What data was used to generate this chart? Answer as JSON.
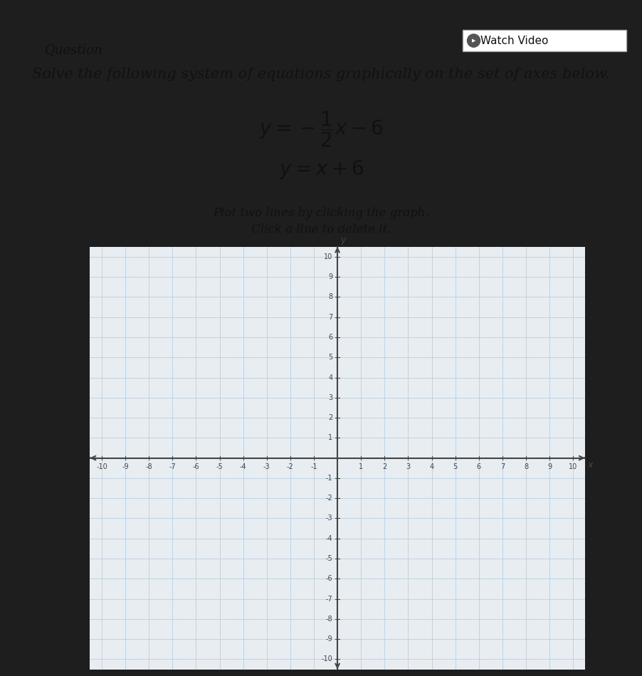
{
  "title_question": "Question",
  "title_watch": "Watch Video",
  "instruction": "Solve the following system of equations graphically on the set of axes below.",
  "plot_instruction": "Plot two lines by clicking the graph.",
  "delete_instruction": "Click a line to delete it.",
  "xmin": -10,
  "xmax": 10,
  "ymin": -10,
  "ymax": 10,
  "header_color": "#1e1e1e",
  "page_color": "#e8edf2",
  "grid_color": "#b8cfe0",
  "axis_color": "#444444",
  "text_color": "#111111",
  "watch_border": "#bbbbbb",
  "font_size_instruction": 15,
  "font_size_eq": 20,
  "font_size_plot_instr": 12,
  "font_size_tick": 7
}
